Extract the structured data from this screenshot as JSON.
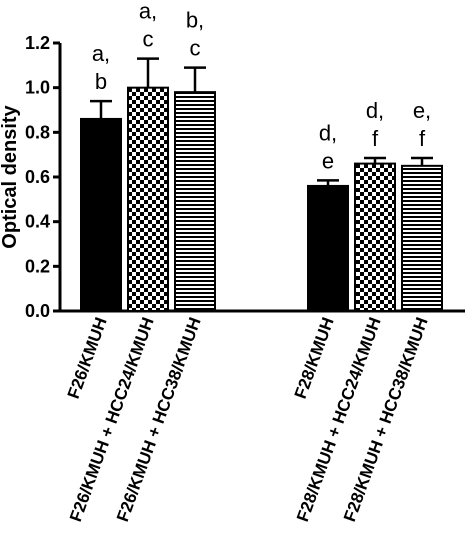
{
  "chart_data": {
    "type": "bar",
    "title": "",
    "xlabel": "",
    "ylabel": "Optical density",
    "ylim": [
      0,
      1.2
    ],
    "yticks": [
      "0.0",
      "0.2",
      "0.4",
      "0.6",
      "0.8",
      "1.0",
      "1.2"
    ],
    "grid": false,
    "legend": "none",
    "groups": [
      {
        "bars": [
          {
            "category": "F26/KMUH",
            "value": 0.86,
            "error": 0.08,
            "pattern": "solid",
            "sig_top": "a,",
            "sig_bottom": "b"
          },
          {
            "category": "F26/KMUH + HCC24/KMUH",
            "value": 1.0,
            "error": 0.13,
            "pattern": "checker",
            "sig_top": "a,",
            "sig_bottom": "c"
          },
          {
            "category": "F26/KMUH + HCC38/KMUH",
            "value": 0.98,
            "error": 0.11,
            "pattern": "hstripes",
            "sig_top": "b,",
            "sig_bottom": "c"
          }
        ]
      },
      {
        "bars": [
          {
            "category": "F28/KMUH",
            "value": 0.56,
            "error": 0.025,
            "pattern": "solid",
            "sig_top": "d,",
            "sig_bottom": "e"
          },
          {
            "category": "F28/KMUH + HCC24/KMUH",
            "value": 0.66,
            "error": 0.025,
            "pattern": "checker",
            "sig_top": "d,",
            "sig_bottom": "f"
          },
          {
            "category": "F28/KMUH + HCC38/KMUH",
            "value": 0.65,
            "error": 0.035,
            "pattern": "hstripes",
            "sig_top": "e,",
            "sig_bottom": "f"
          }
        ]
      }
    ]
  }
}
